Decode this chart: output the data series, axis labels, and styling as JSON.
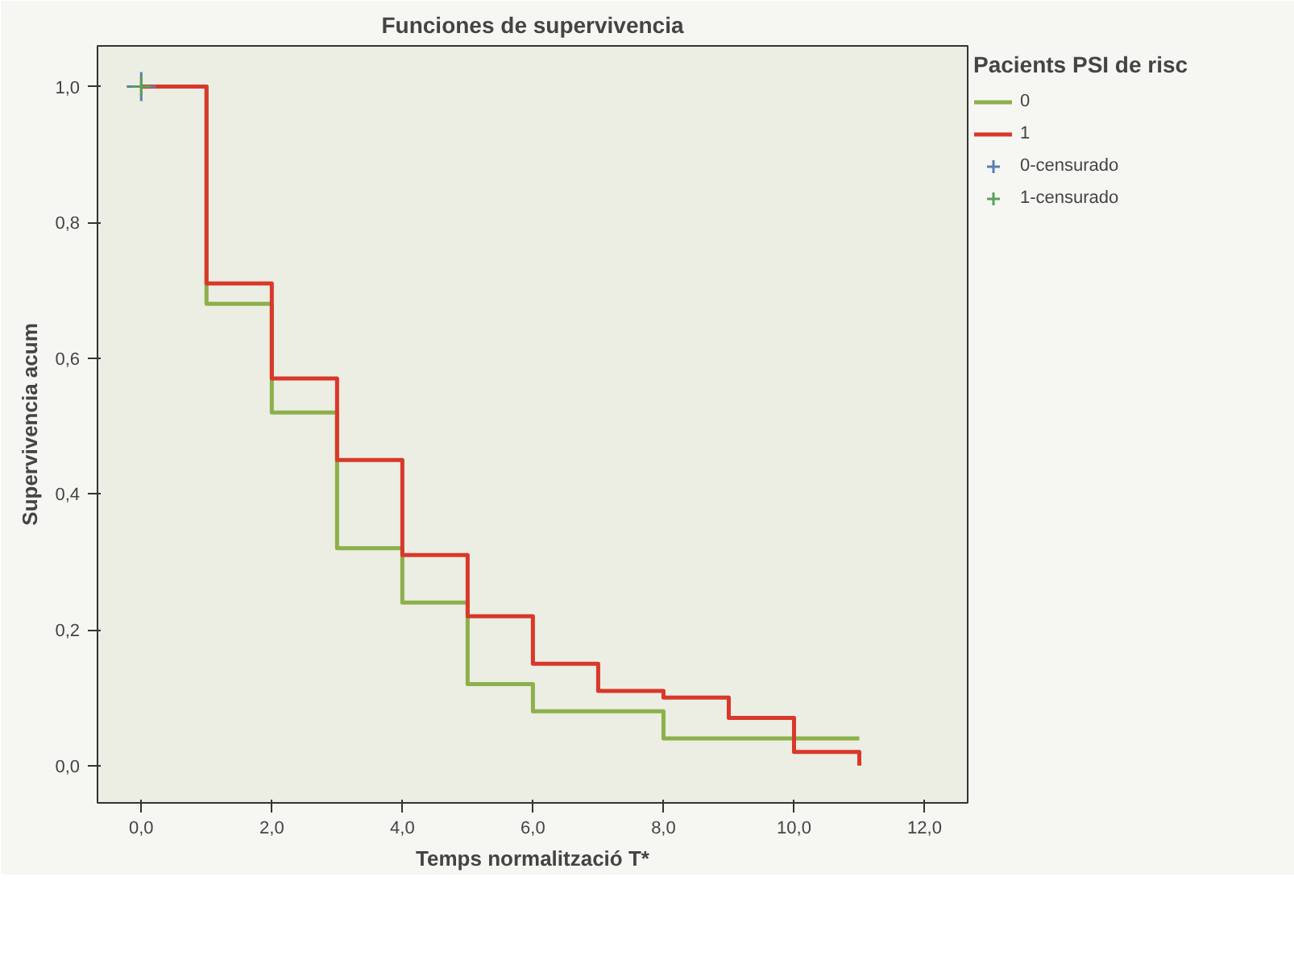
{
  "chart_data": {
    "type": "step",
    "title": "Funciones de supervivencia",
    "xlabel": "Temps normalització T*",
    "ylabel": "Supervivencia acum",
    "legend_title": "Pacients PSI de risc",
    "x": [
      0,
      1,
      2,
      3,
      4,
      5,
      6,
      7,
      8,
      9,
      10,
      11
    ],
    "series": [
      {
        "name": "0",
        "color": "#8cb04a",
        "values": [
          1.0,
          0.68,
          0.52,
          0.32,
          0.24,
          0.12,
          0.08,
          0.08,
          0.04,
          0.04,
          0.04,
          0.04
        ]
      },
      {
        "name": "1",
        "color": "#d8382a",
        "values": [
          1.0,
          0.71,
          0.57,
          0.45,
          0.31,
          0.22,
          0.15,
          0.11,
          0.1,
          0.07,
          0.02,
          0.0
        ]
      },
      {
        "name": "0-censurado",
        "type": "scatter",
        "marker": "cross",
        "color": "#5a7fb0",
        "x": [
          0
        ],
        "values": [
          1.0
        ]
      },
      {
        "name": "1-censurado",
        "type": "scatter",
        "marker": "cross",
        "color": "#5aa05a",
        "x": [
          0
        ],
        "values": [
          1.0
        ]
      }
    ],
    "xlim": [
      -0.67,
      12.66
    ],
    "ylim": [
      -0.055,
      1.06
    ],
    "xticks": [
      {
        "value": 0,
        "label": "0,0"
      },
      {
        "value": 2,
        "label": "2,0"
      },
      {
        "value": 4,
        "label": "4,0"
      },
      {
        "value": 6,
        "label": "6,0"
      },
      {
        "value": 8,
        "label": "8,0"
      },
      {
        "value": 10,
        "label": "10,0"
      },
      {
        "value": 12,
        "label": "12,0"
      }
    ],
    "yticks": [
      {
        "value": 0,
        "label": "0,0"
      },
      {
        "value": 0.2,
        "label": "0,2"
      },
      {
        "value": 0.4,
        "label": "0,4"
      },
      {
        "value": 0.6,
        "label": "0,6"
      },
      {
        "value": 0.8,
        "label": "0,8"
      },
      {
        "value": 1.0,
        "label": "1,0"
      }
    ],
    "grid": false,
    "legend": "right",
    "marker": "none",
    "line_style": "solid"
  }
}
